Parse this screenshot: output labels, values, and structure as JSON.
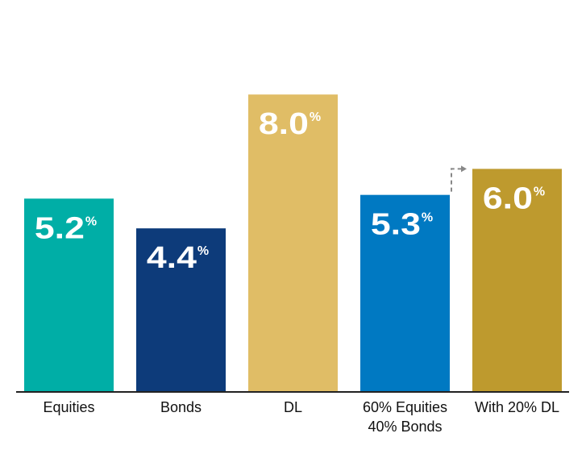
{
  "chart_data": {
    "type": "bar",
    "categories": [
      "Equities",
      "Bonds",
      "DL",
      "60% Equities|40% Bonds",
      "With 20% DL"
    ],
    "values": [
      5.2,
      4.4,
      8.0,
      5.3,
      6.0
    ],
    "value_labels": [
      "5.2",
      "4.4",
      "8.0",
      "5.3",
      "6.0"
    ],
    "value_suffix": "%",
    "ylim": [
      0,
      10
    ],
    "grid": false,
    "colors": [
      "#00aea6",
      "#0d3b7a",
      "#e0bd66",
      "#0079c2",
      "#be9a2e"
    ],
    "arrow_color": "#888888"
  }
}
